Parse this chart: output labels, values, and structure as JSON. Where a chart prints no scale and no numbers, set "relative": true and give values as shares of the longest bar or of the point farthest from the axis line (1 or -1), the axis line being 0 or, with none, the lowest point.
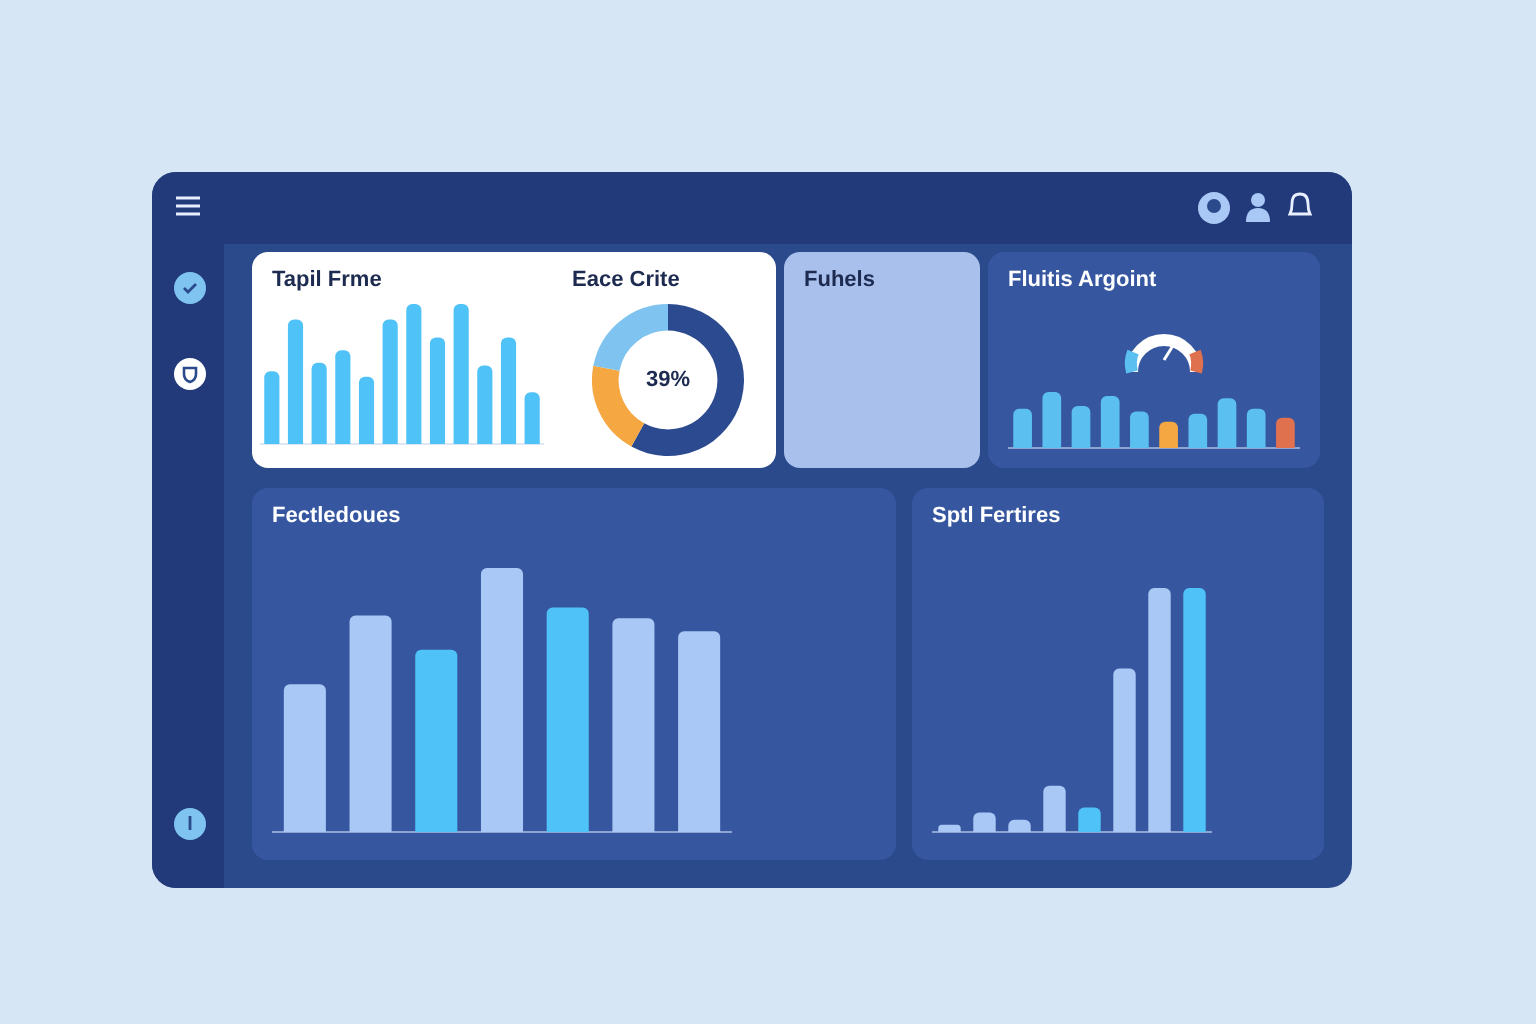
{
  "chart_data": [
    {
      "type": "bar",
      "title": "Tapil Frme",
      "relative": true,
      "categories": [
        null,
        null,
        null,
        null,
        null,
        null,
        null,
        null,
        null,
        null,
        null,
        null
      ],
      "values": [
        0.52,
        0.89,
        0.58,
        0.67,
        0.48,
        0.89,
        1,
        0.76,
        1,
        0.56,
        0.76,
        0.37
      ],
      "color": "#4fc3f7"
    },
    {
      "type": "donut",
      "title": "Eace Crite",
      "categories": [
        null,
        null,
        null
      ],
      "values": [
        58,
        20,
        22
      ],
      "colors": [
        "#2c4a8f",
        "#f5a742",
        "#7fc4f0"
      ],
      "annotations": [
        "39%"
      ]
    },
    {
      "type": "other",
      "title": "Fuhels"
    },
    {
      "type": "bar",
      "title": "Fluitis Argoint",
      "relative": true,
      "categories": [
        null,
        null,
        null,
        null,
        null,
        null,
        null,
        null,
        null,
        null
      ],
      "values": [
        0.7,
        1,
        0.75,
        0.93,
        0.65,
        0.47,
        0.61,
        0.89,
        0.7,
        0.54
      ],
      "colors": [
        "#5bc0f0",
        "#5bc0f0",
        "#5bc0f0",
        "#5bc0f0",
        "#5bc0f0",
        "#f5a742",
        "#5bc0f0",
        "#5bc0f0",
        "#5bc0f0",
        "#e0714f"
      ]
    },
    {
      "type": "bar",
      "title": "Fectledoues",
      "relative": true,
      "categories": [
        null,
        null,
        null,
        null,
        null,
        null,
        null
      ],
      "values": [
        0.56,
        0.82,
        0.69,
        1,
        0.85,
        0.81,
        0.76
      ],
      "colors": [
        "#a9c8f5",
        "#a9c8f5",
        "#4fc3f7",
        "#a9c8f5",
        "#4fc3f7",
        "#a9c8f5",
        "#a9c8f5"
      ]
    },
    {
      "type": "bar",
      "title": "Sptl Fertires",
      "relative": true,
      "categories": [
        null,
        null,
        null,
        null,
        null,
        null,
        null,
        null
      ],
      "values": [
        0.03,
        0.08,
        0.05,
        0.19,
        0.1,
        0.67,
        1,
        1
      ],
      "colors": [
        "#a9c8f5",
        "#a9c8f5",
        "#a9c8f5",
        "#a9c8f5",
        "#4fc3f7",
        "#a9c8f5",
        "#a9c8f5",
        "#4fc3f7"
      ]
    }
  ]
}
